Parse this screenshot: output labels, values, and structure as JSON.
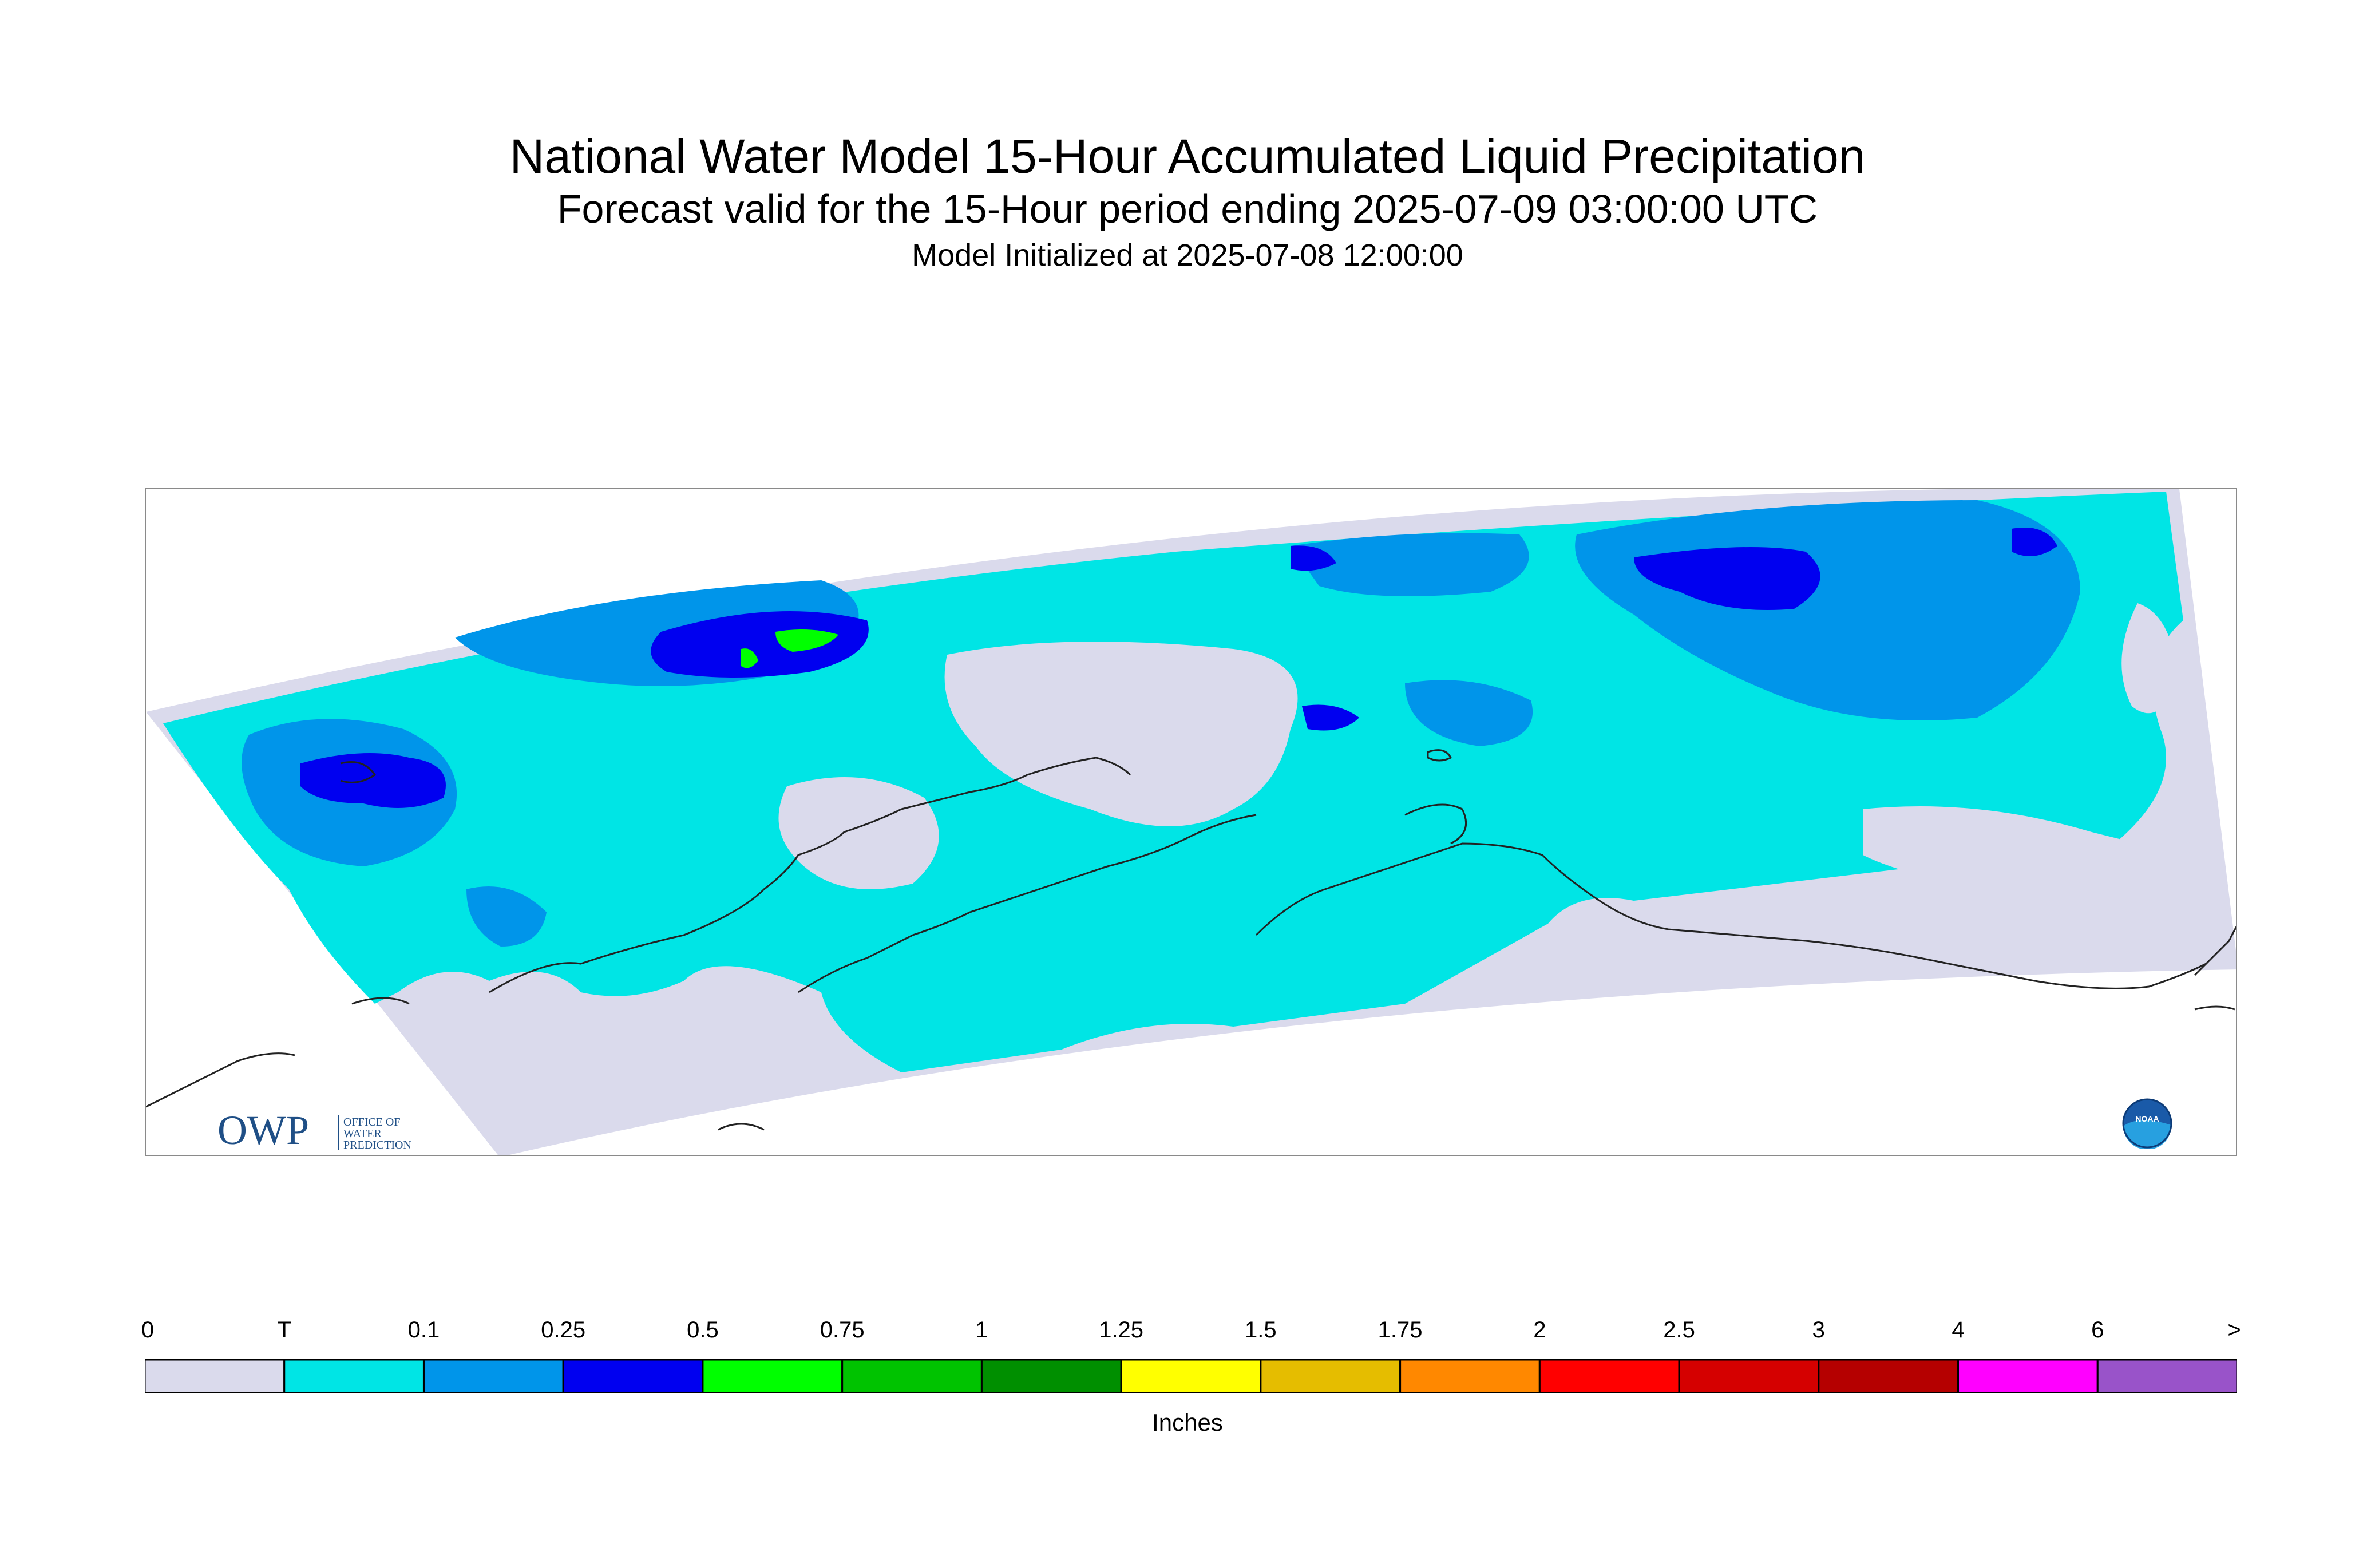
{
  "header": {
    "title": "National Water Model 15-Hour Accumulated Liquid Precipitation",
    "subtitle": "Forecast valid for the 15-Hour period ending 2025-07-09 03:00:00 UTC",
    "init": "Model Initialized at 2025-07-08 12:00:00"
  },
  "colors": {
    "background_zero": "#dadaec",
    "coastline": "#222222",
    "frame": "#8a8a8a"
  },
  "logos": {
    "owp_text": "OWP",
    "owp_sub": [
      "OFFICE OF",
      "WATER",
      "PREDICTION"
    ],
    "noaa_text": "NOAA"
  },
  "legend": {
    "tick_labels": [
      "0",
      "T",
      "0.1",
      "0.25",
      "0.5",
      "0.75",
      "1",
      "1.25",
      "1.5",
      "1.75",
      "2",
      "2.5",
      "3",
      "4",
      "6",
      ">"
    ],
    "colors": [
      "#dadaec",
      "#00e5e5",
      "#0095ea",
      "#0000f0",
      "#00ff00",
      "#00c300",
      "#008f00",
      "#ffff00",
      "#e5bd00",
      "#ff8800",
      "#ff0000",
      "#d50000",
      "#b50000",
      "#ff00ff",
      "#9953c9"
    ],
    "units": "Inches"
  }
}
